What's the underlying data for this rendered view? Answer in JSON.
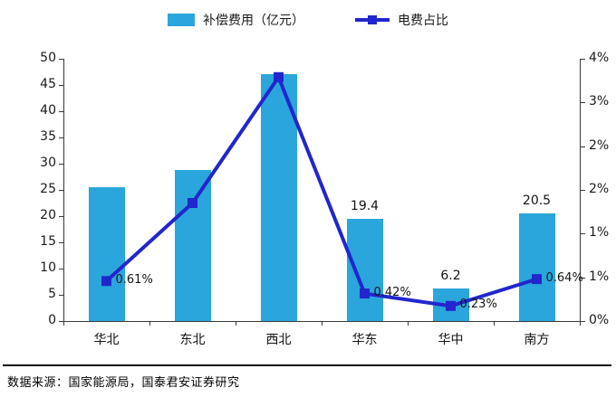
{
  "chart_data": {
    "type": "bar+line",
    "title": "",
    "categories": [
      "华北",
      "东北",
      "西北",
      "华东",
      "华中",
      "南方"
    ],
    "series": [
      {
        "name": "补偿费用（亿元）",
        "type": "bar",
        "axis": "left",
        "color": "#2aa6dc",
        "values": [
          25.6,
          28.8,
          47,
          19.4,
          6.2,
          20.5
        ],
        "labels": [
          "",
          "",
          "",
          "19.4",
          "6.2",
          "20.5"
        ]
      },
      {
        "name": "电费占比",
        "type": "line",
        "axis": "right",
        "color": "#2126cd",
        "values": [
          0.61,
          1.8,
          3.72,
          0.42,
          0.23,
          0.64
        ],
        "labels": [
          "0.61%",
          "",
          "",
          "0.42%",
          "0.23%",
          "0.64%"
        ]
      }
    ],
    "left_axis": {
      "min": 0,
      "max": 50,
      "tick_step": 5,
      "tick_labels_top_to_bottom": [
        "50",
        "45",
        "40",
        "35",
        "30",
        "25",
        "20",
        "15",
        "10",
        "5",
        "0"
      ]
    },
    "right_axis": {
      "min": 0,
      "max": 4,
      "tick_labels_top_to_bottom": [
        "4%",
        "3%",
        "2%",
        "2%",
        "1%",
        "1%",
        "0%"
      ]
    },
    "legend": [
      {
        "label": "补偿费用（亿元）"
      },
      {
        "label": "电费占比"
      }
    ],
    "grid": "off",
    "legend_position": "top-center",
    "source_note": "数据来源：国家能源局，国泰君安证券研究"
  }
}
